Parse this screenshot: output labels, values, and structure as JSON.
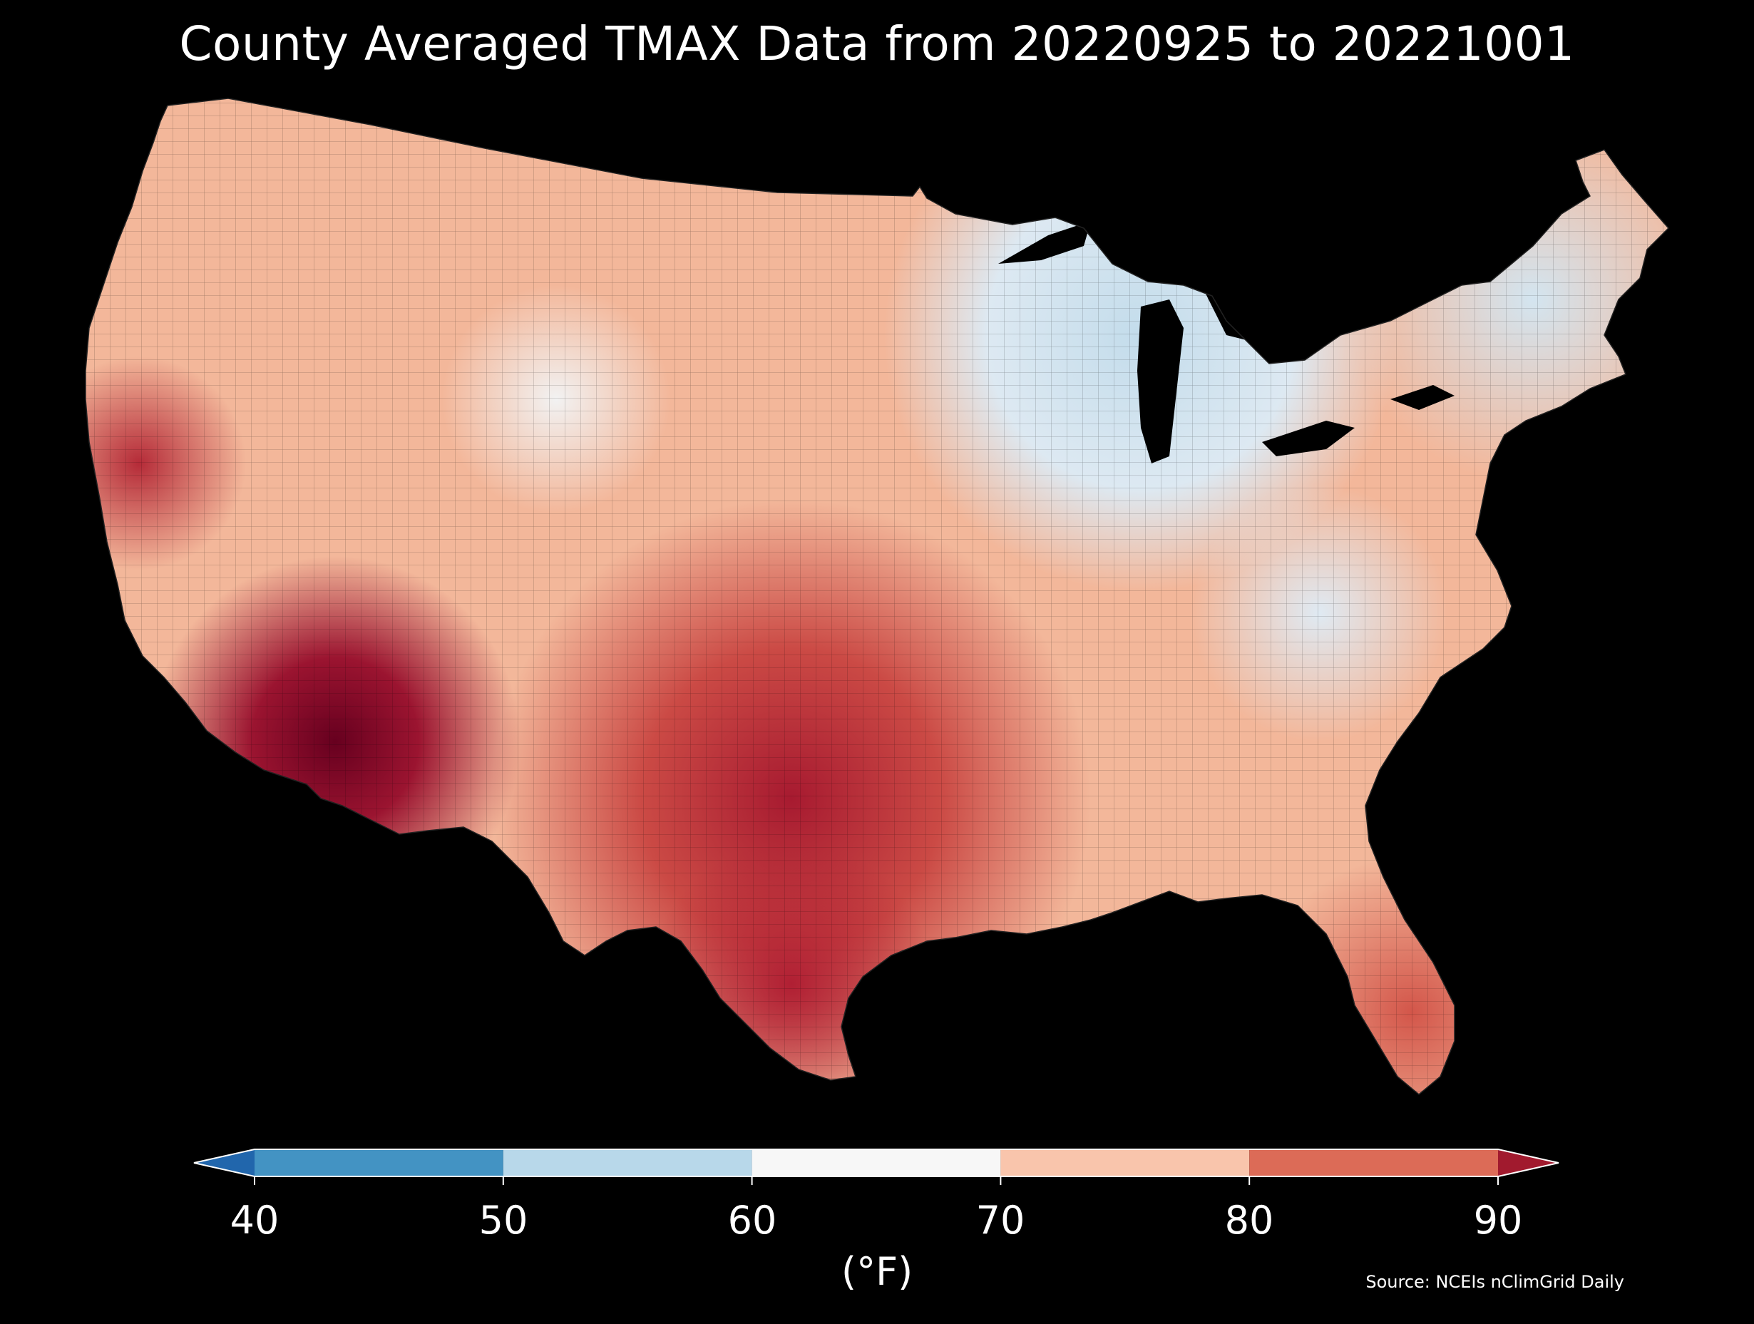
{
  "title": "County Averaged TMAX Data from 20220925 to 20221001",
  "legend": {
    "label": "(°F)",
    "ticks": [
      "40",
      "50",
      "60",
      "70",
      "80",
      "90"
    ],
    "bins": [
      {
        "range": "<40",
        "color": "#2166ac"
      },
      {
        "range": "40-50",
        "color": "#4393c3"
      },
      {
        "range": "50-60",
        "color": "#b8d8ea"
      },
      {
        "range": "60-70",
        "color": "#f7f7f7"
      },
      {
        "range": "70-80",
        "color": "#f9c5ac"
      },
      {
        "range": "80-90",
        "color": "#dc6b57"
      },
      {
        "range": ">90",
        "color": "#a11a2e"
      }
    ],
    "extend": "both"
  },
  "source": "Source: NCEIs nClimGrid Daily",
  "map": {
    "region": "Contiguous United States",
    "variable": "TMAX",
    "background": "#000000",
    "regional_pattern": [
      {
        "region": "Southwest deserts (AZ / SE CA)",
        "approx_f": 91
      },
      {
        "region": "Central Texas",
        "approx_f": 88
      },
      {
        "region": "Southern Plains (OK / KS)",
        "approx_f": 84
      },
      {
        "region": "California Central Valley",
        "approx_f": 86
      },
      {
        "region": "Gulf Coast & Florida",
        "approx_f": 82
      },
      {
        "region": "Pacific Northwest",
        "approx_f": 73
      },
      {
        "region": "Northern Rockies",
        "approx_f": 68
      },
      {
        "region": "Great Lakes / Upper Midwest",
        "approx_f": 57
      },
      {
        "region": "Northeast / New England",
        "approx_f": 60
      },
      {
        "region": "Appalachians",
        "approx_f": 58
      }
    ]
  }
}
